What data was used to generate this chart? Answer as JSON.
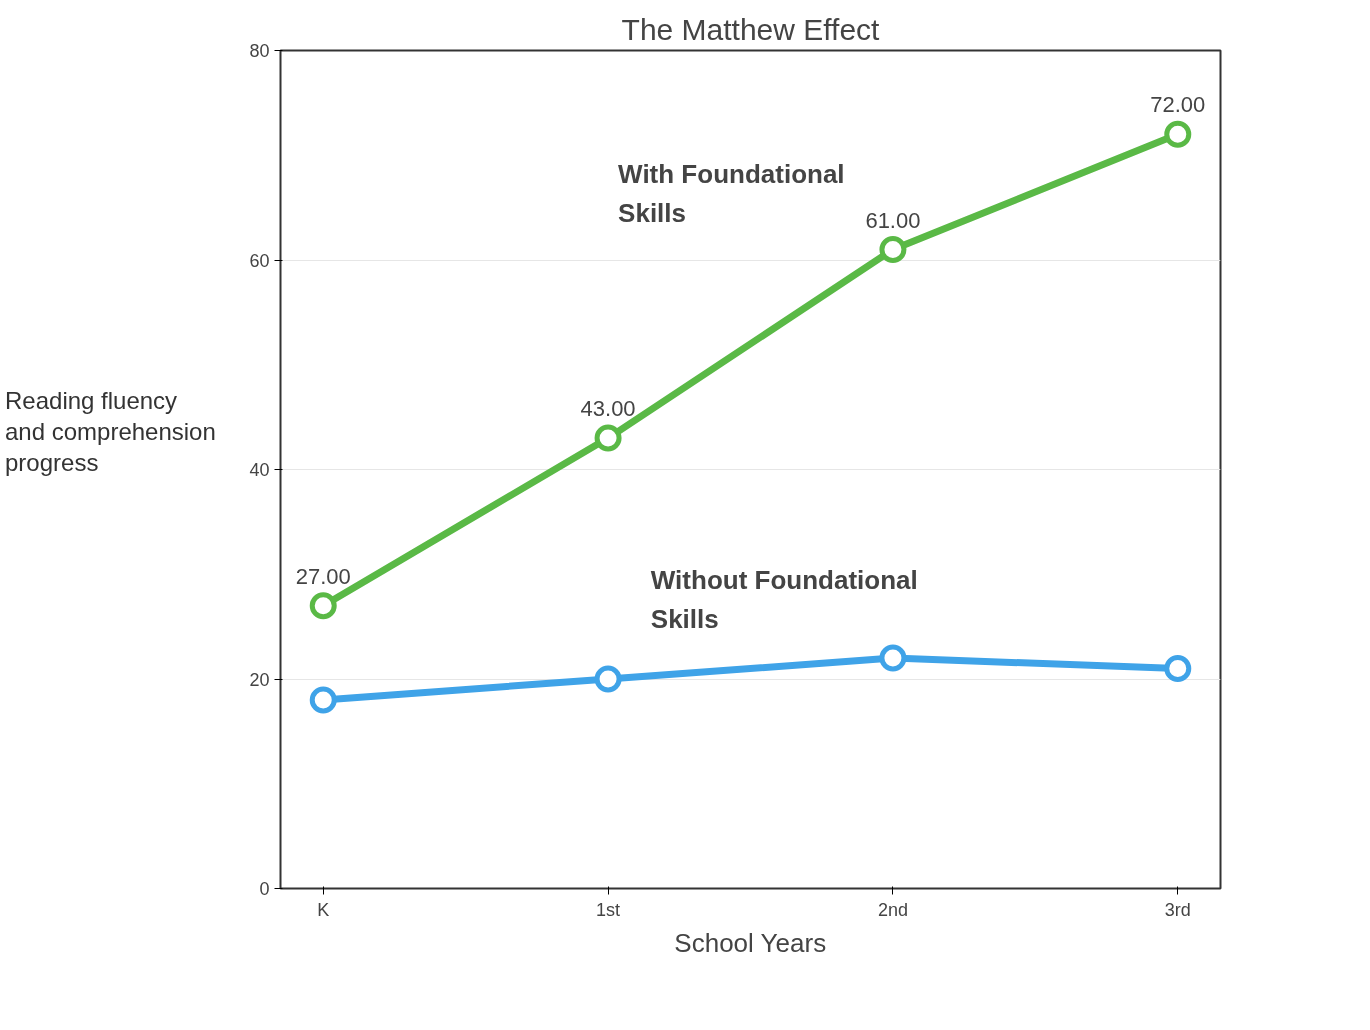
{
  "chart_data": {
    "type": "line",
    "title": "The Matthew Effect",
    "xlabel": "School Years",
    "ylabel": "Reading fluency and comprehension progress",
    "categories": [
      "K",
      "1st",
      "2nd",
      "3rd"
    ],
    "series": [
      {
        "name": "With Foundational Skills",
        "color": "#5ab946",
        "values": [
          27,
          43,
          61,
          72
        ],
        "value_labels": [
          "27.00",
          "43.00",
          "61.00",
          "72.00"
        ]
      },
      {
        "name": "Without Foundational Skills",
        "color": "#3fa3e8",
        "values": [
          18,
          20,
          22,
          21
        ]
      }
    ],
    "ylim": [
      0,
      80
    ],
    "yticks": [
      0,
      20,
      40,
      60,
      80
    ],
    "grid": "y",
    "legend": false,
    "marker": "circle",
    "line_style": "solid"
  }
}
